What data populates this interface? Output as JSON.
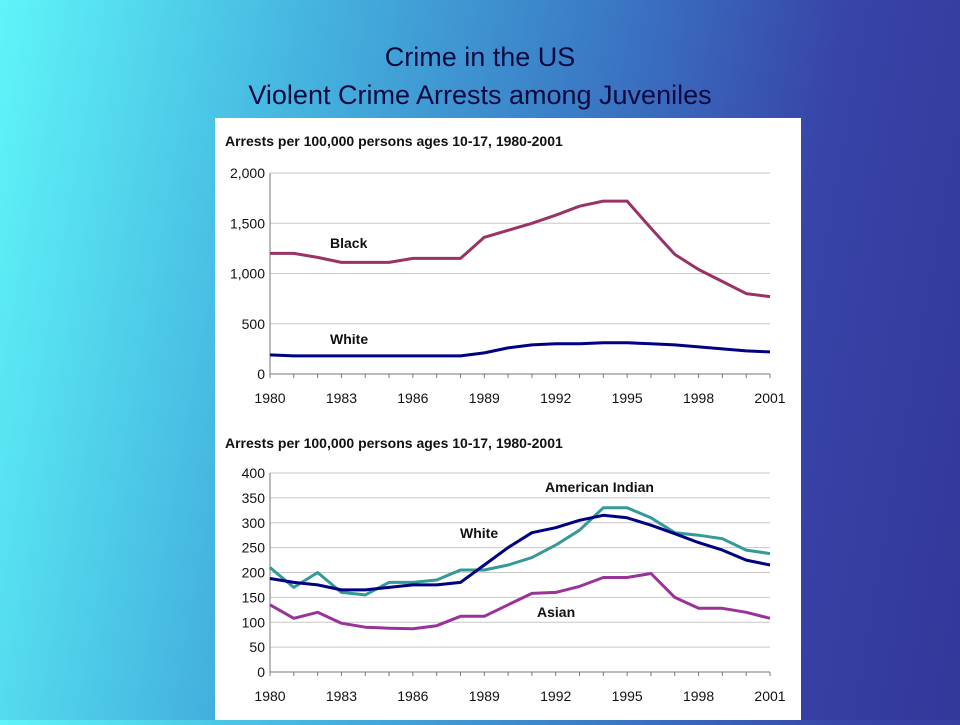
{
  "slide": {
    "title_line1": "Crime in the US",
    "title_line2": "Violent Crime Arrests among Juveniles"
  },
  "chart_data": [
    {
      "type": "line",
      "title": "Arrests per 100,000 persons ages 10-17, 1980-2001",
      "x_tick_labels": [
        "1980",
        "1983",
        "1986",
        "1989",
        "1992",
        "1995",
        "1998",
        "2001"
      ],
      "y_tick_labels": [
        "0",
        "500",
        "1,000",
        "1,500",
        "2,000"
      ],
      "ylim": [
        0,
        2000
      ],
      "xlim": [
        1980,
        2001
      ],
      "grid": true,
      "x": [
        1980,
        1981,
        1982,
        1983,
        1984,
        1985,
        1986,
        1987,
        1988,
        1989,
        1990,
        1991,
        1992,
        1993,
        1994,
        1995,
        1996,
        1997,
        1998,
        1999,
        2000,
        2001
      ],
      "series": [
        {
          "name": "Black",
          "color": "#993366",
          "values": [
            1200,
            1200,
            1160,
            1110,
            1110,
            1110,
            1150,
            1150,
            1150,
            1360,
            1430,
            1500,
            1580,
            1670,
            1720,
            1720,
            1450,
            1190,
            1040,
            920,
            800,
            770
          ]
        },
        {
          "name": "White",
          "color": "#000080",
          "values": [
            190,
            180,
            180,
            180,
            180,
            180,
            180,
            180,
            180,
            210,
            260,
            290,
            300,
            300,
            310,
            310,
            300,
            290,
            270,
            250,
            230,
            220
          ]
        }
      ]
    },
    {
      "type": "line",
      "title": "Arrests per 100,000 persons ages 10-17, 1980-2001",
      "x_tick_labels": [
        "1980",
        "1983",
        "1986",
        "1989",
        "1992",
        "1995",
        "1998",
        "2001"
      ],
      "y_tick_labels": [
        "0",
        "50",
        "100",
        "150",
        "200",
        "250",
        "300",
        "350",
        "400"
      ],
      "ylim": [
        0,
        400
      ],
      "xlim": [
        1980,
        2001
      ],
      "grid": true,
      "x": [
        1980,
        1981,
        1982,
        1983,
        1984,
        1985,
        1986,
        1987,
        1988,
        1989,
        1990,
        1991,
        1992,
        1993,
        1994,
        1995,
        1996,
        1997,
        1998,
        1999,
        2000,
        2001
      ],
      "series": [
        {
          "name": "American Indian",
          "color": "#339999",
          "values": [
            210,
            170,
            200,
            160,
            155,
            180,
            180,
            185,
            205,
            205,
            215,
            230,
            255,
            285,
            330,
            330,
            310,
            280,
            275,
            268,
            245,
            238
          ]
        },
        {
          "name": "White",
          "color": "#000080",
          "values": [
            188,
            180,
            175,
            165,
            165,
            170,
            175,
            175,
            180,
            215,
            250,
            280,
            290,
            305,
            315,
            310,
            295,
            278,
            260,
            245,
            225,
            215
          ]
        },
        {
          "name": "Asian",
          "color": "#993399",
          "values": [
            135,
            108,
            120,
            98,
            90,
            88,
            87,
            93,
            112,
            112,
            135,
            158,
            160,
            172,
            190,
            190,
            198,
            150,
            128,
            128,
            120,
            108
          ]
        }
      ]
    }
  ]
}
